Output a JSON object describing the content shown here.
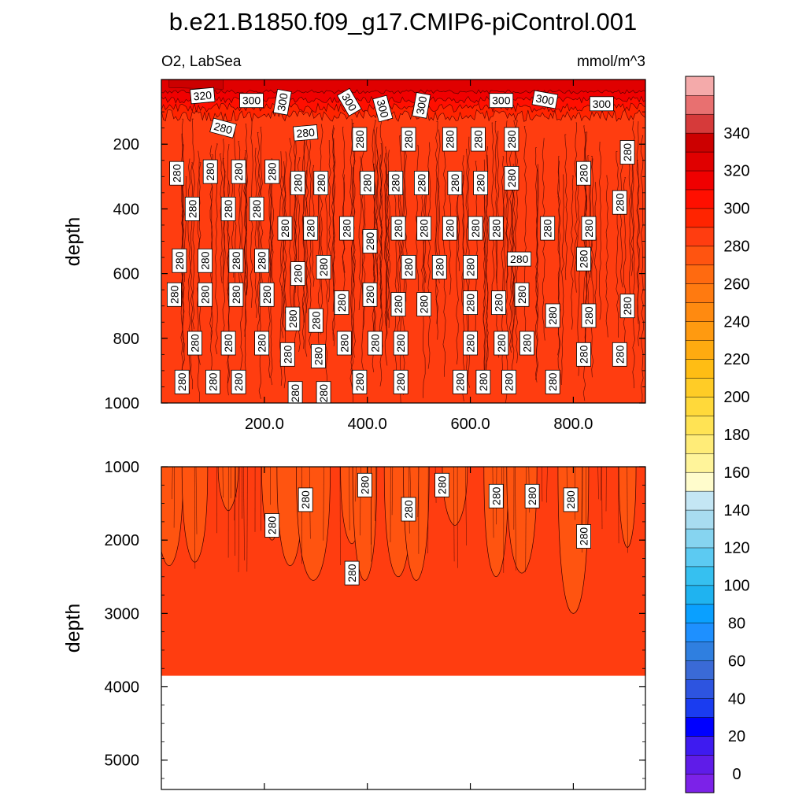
{
  "chart_data": {
    "type": "contour",
    "title": "b.e21.B1850.f09_g17.CMIP6-piControl.001",
    "left_string": "O2, LabSea",
    "right_string": "mmol/m^3",
    "ylabel": "depth",
    "contour_levels": [
      0,
      10,
      20,
      30,
      40,
      50,
      60,
      70,
      80,
      90,
      100,
      110,
      120,
      130,
      140,
      150,
      160,
      170,
      180,
      190,
      200,
      210,
      220,
      230,
      240,
      250,
      260,
      270,
      280,
      290,
      300,
      310,
      320,
      330,
      340,
      350
    ],
    "colorbar": {
      "labels": [
        "0",
        "20",
        "40",
        "60",
        "80",
        "100",
        "120",
        "140",
        "160",
        "180",
        "200",
        "220",
        "240",
        "260",
        "280",
        "300",
        "320",
        "340"
      ],
      "colors": [
        "#7c22e8",
        "#5f1ce8",
        "#3e1bf0",
        "#0000ff",
        "#1a3cf0",
        "#2d54e0",
        "#3a6ad6",
        "#2f7fe0",
        "#1e90ff",
        "#0aa0ff",
        "#1fb3f0",
        "#36c0f0",
        "#5ccaf2",
        "#86d4f0",
        "#a8dcf0",
        "#c4e6f4",
        "#fffccc",
        "#fff49a",
        "#ffec78",
        "#ffe354",
        "#ffd93a",
        "#ffcc26",
        "#ffbd14",
        "#ffab10",
        "#ff9a10",
        "#ff8a10",
        "#ff7a10",
        "#ff6a10",
        "#ff5410",
        "#ff3d10",
        "#ff2400",
        "#ff0f00",
        "#f00000",
        "#e00000",
        "#cc0000",
        "#d63a3a",
        "#e87070",
        "#f4aaaa"
      ]
    },
    "upper_panel": {
      "ylim": [
        1000,
        0
      ],
      "yticks": [
        200,
        400,
        600,
        800,
        1000
      ],
      "xticks": [
        "200.0",
        "400.0",
        "600.0",
        "800.0"
      ],
      "xlim": [
        0,
        940
      ],
      "mixed_layer_depth_max": 130,
      "mixed_layer_value": 300,
      "background_value": 280,
      "contour_labels": [
        {
          "text": "320",
          "x": 80,
          "y": 50,
          "rot": -5
        },
        {
          "text": "300",
          "x": 175,
          "y": 65,
          "rot": 0
        },
        {
          "text": "300",
          "x": 235,
          "y": 70,
          "rot": -80
        },
        {
          "text": "300",
          "x": 365,
          "y": 70,
          "rot": 60
        },
        {
          "text": "300",
          "x": 430,
          "y": 90,
          "rot": 75
        },
        {
          "text": "300",
          "x": 505,
          "y": 80,
          "rot": -80
        },
        {
          "text": "300",
          "x": 660,
          "y": 65,
          "rot": 0
        },
        {
          "text": "300",
          "x": 745,
          "y": 62,
          "rot": 10
        },
        {
          "text": "300",
          "x": 855,
          "y": 75,
          "rot": 0
        },
        {
          "text": "280",
          "x": 120,
          "y": 150,
          "rot": 15
        },
        {
          "text": "280",
          "x": 280,
          "y": 165,
          "rot": -5
        },
        {
          "text": "280",
          "x": 30,
          "y": 290,
          "rot": -90
        },
        {
          "text": "280",
          "x": 95,
          "y": 285,
          "rot": -90
        },
        {
          "text": "280",
          "x": 150,
          "y": 285,
          "rot": -90
        },
        {
          "text": "280",
          "x": 215,
          "y": 285,
          "rot": -90
        },
        {
          "text": "280",
          "x": 385,
          "y": 185,
          "rot": -90
        },
        {
          "text": "280",
          "x": 480,
          "y": 185,
          "rot": -90
        },
        {
          "text": "280",
          "x": 560,
          "y": 185,
          "rot": -90
        },
        {
          "text": "280",
          "x": 615,
          "y": 185,
          "rot": -90
        },
        {
          "text": "280",
          "x": 680,
          "y": 185,
          "rot": -90
        },
        {
          "text": "280",
          "x": 905,
          "y": 225,
          "rot": -90
        },
        {
          "text": "280",
          "x": 265,
          "y": 320,
          "rot": -90
        },
        {
          "text": "280",
          "x": 310,
          "y": 320,
          "rot": -90
        },
        {
          "text": "280",
          "x": 400,
          "y": 320,
          "rot": -90
        },
        {
          "text": "280",
          "x": 455,
          "y": 320,
          "rot": -90
        },
        {
          "text": "280",
          "x": 505,
          "y": 320,
          "rot": -90
        },
        {
          "text": "280",
          "x": 570,
          "y": 320,
          "rot": -90
        },
        {
          "text": "280",
          "x": 620,
          "y": 320,
          "rot": -90
        },
        {
          "text": "280",
          "x": 680,
          "y": 305,
          "rot": -90
        },
        {
          "text": "280",
          "x": 820,
          "y": 290,
          "rot": -90
        },
        {
          "text": "280",
          "x": 890,
          "y": 380,
          "rot": -90
        },
        {
          "text": "280",
          "x": 60,
          "y": 400,
          "rot": -90
        },
        {
          "text": "280",
          "x": 130,
          "y": 400,
          "rot": -90
        },
        {
          "text": "280",
          "x": 185,
          "y": 400,
          "rot": -90
        },
        {
          "text": "280",
          "x": 240,
          "y": 460,
          "rot": -90
        },
        {
          "text": "280",
          "x": 290,
          "y": 460,
          "rot": -90
        },
        {
          "text": "280",
          "x": 360,
          "y": 460,
          "rot": -90
        },
        {
          "text": "280",
          "x": 460,
          "y": 460,
          "rot": -90
        },
        {
          "text": "280",
          "x": 510,
          "y": 460,
          "rot": -90
        },
        {
          "text": "280",
          "x": 560,
          "y": 460,
          "rot": -90
        },
        {
          "text": "280",
          "x": 610,
          "y": 460,
          "rot": -90
        },
        {
          "text": "280",
          "x": 650,
          "y": 460,
          "rot": -90
        },
        {
          "text": "280",
          "x": 750,
          "y": 460,
          "rot": -90
        },
        {
          "text": "280",
          "x": 830,
          "y": 460,
          "rot": -90
        },
        {
          "text": "280",
          "x": 405,
          "y": 500,
          "rot": -90
        },
        {
          "text": "280",
          "x": 35,
          "y": 560,
          "rot": -90
        },
        {
          "text": "280",
          "x": 85,
          "y": 560,
          "rot": -90
        },
        {
          "text": "280",
          "x": 145,
          "y": 560,
          "rot": -90
        },
        {
          "text": "280",
          "x": 195,
          "y": 560,
          "rot": -90
        },
        {
          "text": "280",
          "x": 265,
          "y": 600,
          "rot": -90
        },
        {
          "text": "280",
          "x": 315,
          "y": 580,
          "rot": -90
        },
        {
          "text": "280",
          "x": 480,
          "y": 580,
          "rot": -90
        },
        {
          "text": "280",
          "x": 540,
          "y": 580,
          "rot": -90
        },
        {
          "text": "280",
          "x": 600,
          "y": 580,
          "rot": -90
        },
        {
          "text": "280",
          "x": 695,
          "y": 555,
          "rot": 0
        },
        {
          "text": "280",
          "x": 820,
          "y": 555,
          "rot": -90
        },
        {
          "text": "280",
          "x": 25,
          "y": 665,
          "rot": -90
        },
        {
          "text": "280",
          "x": 85,
          "y": 665,
          "rot": -90
        },
        {
          "text": "280",
          "x": 145,
          "y": 665,
          "rot": -90
        },
        {
          "text": "280",
          "x": 205,
          "y": 665,
          "rot": -90
        },
        {
          "text": "280",
          "x": 350,
          "y": 690,
          "rot": -90
        },
        {
          "text": "280",
          "x": 405,
          "y": 665,
          "rot": -90
        },
        {
          "text": "280",
          "x": 460,
          "y": 695,
          "rot": -90
        },
        {
          "text": "280",
          "x": 510,
          "y": 695,
          "rot": -90
        },
        {
          "text": "280",
          "x": 600,
          "y": 690,
          "rot": -90
        },
        {
          "text": "280",
          "x": 655,
          "y": 690,
          "rot": -90
        },
        {
          "text": "280",
          "x": 700,
          "y": 665,
          "rot": -90
        },
        {
          "text": "280",
          "x": 760,
          "y": 730,
          "rot": -90
        },
        {
          "text": "280",
          "x": 830,
          "y": 730,
          "rot": -90
        },
        {
          "text": "280",
          "x": 905,
          "y": 700,
          "rot": -90
        },
        {
          "text": "280",
          "x": 255,
          "y": 740,
          "rot": -90
        },
        {
          "text": "280",
          "x": 300,
          "y": 745,
          "rot": -90
        },
        {
          "text": "280",
          "x": 65,
          "y": 815,
          "rot": -90
        },
        {
          "text": "280",
          "x": 130,
          "y": 815,
          "rot": -90
        },
        {
          "text": "280",
          "x": 195,
          "y": 815,
          "rot": -90
        },
        {
          "text": "280",
          "x": 355,
          "y": 815,
          "rot": -90
        },
        {
          "text": "280",
          "x": 415,
          "y": 815,
          "rot": -90
        },
        {
          "text": "280",
          "x": 465,
          "y": 815,
          "rot": -90
        },
        {
          "text": "280",
          "x": 600,
          "y": 815,
          "rot": -90
        },
        {
          "text": "280",
          "x": 660,
          "y": 815,
          "rot": -90
        },
        {
          "text": "280",
          "x": 710,
          "y": 815,
          "rot": -90
        },
        {
          "text": "280",
          "x": 245,
          "y": 850,
          "rot": -90
        },
        {
          "text": "280",
          "x": 305,
          "y": 855,
          "rot": -90
        },
        {
          "text": "280",
          "x": 820,
          "y": 850,
          "rot": -90
        },
        {
          "text": "280",
          "x": 890,
          "y": 850,
          "rot": -90
        },
        {
          "text": "280",
          "x": 40,
          "y": 935,
          "rot": -90
        },
        {
          "text": "280",
          "x": 100,
          "y": 935,
          "rot": -90
        },
        {
          "text": "280",
          "x": 150,
          "y": 935,
          "rot": -90
        },
        {
          "text": "280",
          "x": 385,
          "y": 935,
          "rot": -90
        },
        {
          "text": "280",
          "x": 465,
          "y": 935,
          "rot": -90
        },
        {
          "text": "280",
          "x": 580,
          "y": 935,
          "rot": -90
        },
        {
          "text": "280",
          "x": 625,
          "y": 935,
          "rot": -90
        },
        {
          "text": "280",
          "x": 675,
          "y": 935,
          "rot": -90
        },
        {
          "text": "280",
          "x": 760,
          "y": 935,
          "rot": -90
        },
        {
          "text": "280",
          "x": 260,
          "y": 970,
          "rot": -90
        },
        {
          "text": "280",
          "x": 315,
          "y": 970,
          "rot": -90
        }
      ]
    },
    "lower_panel": {
      "ylim": [
        5400,
        1000
      ],
      "yticks": [
        1000,
        2000,
        3000,
        4000,
        5000
      ],
      "xlim": [
        0,
        940
      ],
      "bottom_depth": 3850,
      "background_value": 280,
      "contour_labels": [
        {
          "text": "280",
          "x": 395,
          "y": 1250,
          "rot": -90
        },
        {
          "text": "280",
          "x": 545,
          "y": 1250,
          "rot": -90
        },
        {
          "text": "280",
          "x": 280,
          "y": 1450,
          "rot": -90
        },
        {
          "text": "280",
          "x": 650,
          "y": 1400,
          "rot": -90
        },
        {
          "text": "280",
          "x": 720,
          "y": 1400,
          "rot": -90
        },
        {
          "text": "280",
          "x": 795,
          "y": 1450,
          "rot": -90
        },
        {
          "text": "280",
          "x": 480,
          "y": 1580,
          "rot": -90
        },
        {
          "text": "280",
          "x": 215,
          "y": 1800,
          "rot": -90
        },
        {
          "text": "280",
          "x": 820,
          "y": 1950,
          "rot": -90
        },
        {
          "text": "280",
          "x": 370,
          "y": 2450,
          "rot": -90
        }
      ],
      "dips": [
        {
          "x": 15,
          "depth": 2350
        },
        {
          "x": 65,
          "depth": 2300
        },
        {
          "x": 130,
          "depth": 1600
        },
        {
          "x": 215,
          "depth": 2000
        },
        {
          "x": 250,
          "depth": 2350
        },
        {
          "x": 295,
          "depth": 2550
        },
        {
          "x": 370,
          "depth": 2050
        },
        {
          "x": 395,
          "depth": 2550
        },
        {
          "x": 460,
          "depth": 2500
        },
        {
          "x": 495,
          "depth": 2550
        },
        {
          "x": 570,
          "depth": 1800
        },
        {
          "x": 650,
          "depth": 2500
        },
        {
          "x": 700,
          "depth": 2450
        },
        {
          "x": 790,
          "depth": 2600
        },
        {
          "x": 800,
          "depth": 3000
        },
        {
          "x": 905,
          "depth": 2100
        }
      ]
    }
  }
}
